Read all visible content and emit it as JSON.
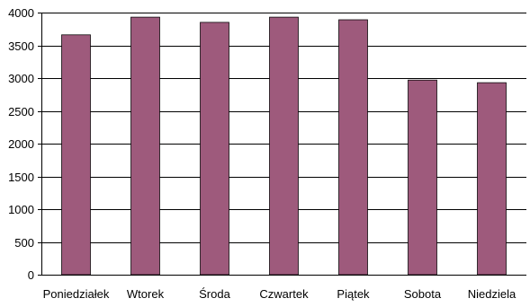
{
  "chart_data": {
    "type": "bar",
    "categories": [
      "Poniedziałek",
      "Wtorek",
      "Środa",
      "Czwartek",
      "Piątek",
      "Sobota",
      "Niedziela"
    ],
    "values": [
      3660,
      3930,
      3850,
      3930,
      3890,
      2970,
      2930
    ],
    "title": "",
    "xlabel": "",
    "ylabel": "",
    "ylim": [
      0,
      4000
    ],
    "yticks": [
      0,
      500,
      1000,
      1500,
      2000,
      2500,
      3000,
      3500,
      4000
    ],
    "grid": true,
    "legend": "none",
    "colors": {
      "bar": "#9E5A7C",
      "grid": "#000000",
      "text": "#000000"
    }
  }
}
